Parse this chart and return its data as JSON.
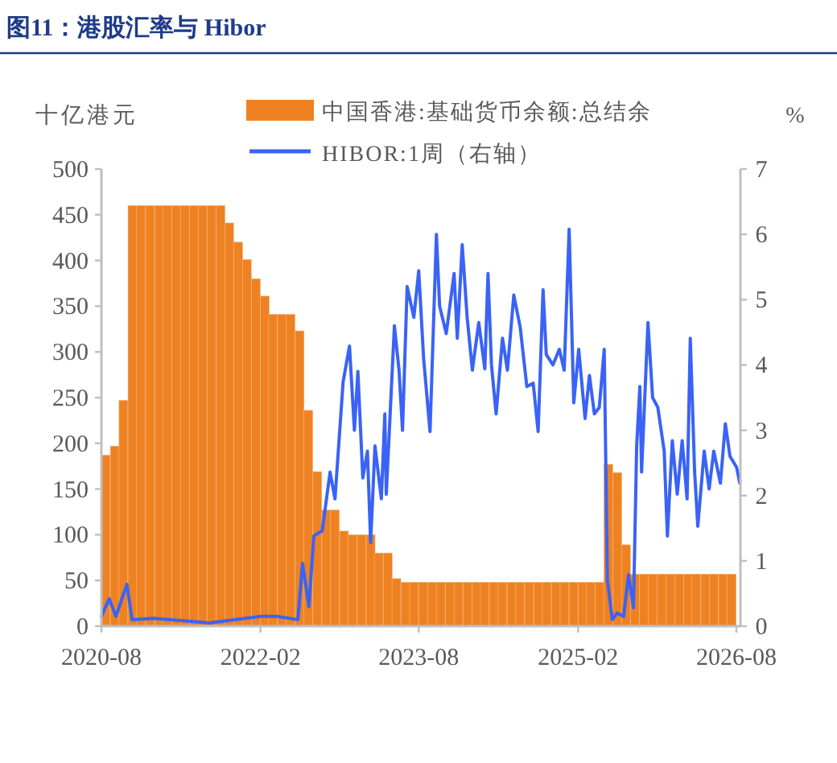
{
  "chart_data": {
    "type": "bar",
    "title": "图11：港股汇率与 Hibor",
    "ylabel": "十亿港元",
    "y2label": "%",
    "xlim": [
      "2020-08-01",
      "2026-08-15"
    ],
    "xticks": [
      "2020-08",
      "2022-02",
      "2023-08",
      "2025-02",
      "2026-08"
    ],
    "ylim": [
      0,
      500
    ],
    "yticks": [
      0,
      50,
      100,
      150,
      200,
      250,
      300,
      350,
      400,
      450,
      500
    ],
    "y2lim": [
      0,
      7
    ],
    "y2ticks": [
      0,
      1,
      2,
      3,
      4,
      5,
      6,
      7
    ],
    "grid": false,
    "legend": "top",
    "series": [
      {
        "name": "中国香港:基础货币余额:总结余",
        "color": "#ee8222",
        "x": [
          "2020-08-16",
          "2020-09-16",
          "2020-10-16",
          "2020-11-16",
          "2020-12-16",
          "2021-01-16",
          "2021-02-16",
          "2021-03-16",
          "2021-04-16",
          "2021-05-16",
          "2021-06-16",
          "2021-07-16",
          "2021-08-16",
          "2021-09-16",
          "2021-10-16",
          "2021-11-16",
          "2021-12-16",
          "2022-01-16",
          "2022-02-16",
          "2022-03-16",
          "2022-04-16",
          "2022-05-16",
          "2022-06-16",
          "2022-07-16",
          "2022-08-16",
          "2022-09-16",
          "2022-10-16",
          "2022-11-16",
          "2022-12-16",
          "2023-01-16",
          "2023-02-16",
          "2023-03-16",
          "2023-04-16",
          "2023-05-16",
          "2023-06-16",
          "2023-07-16",
          "2023-08-16",
          "2023-09-16",
          "2023-10-16",
          "2023-11-16",
          "2023-12-16",
          "2024-01-16",
          "2024-02-16",
          "2024-03-16",
          "2024-04-16",
          "2024-05-16",
          "2024-06-16",
          "2024-07-16",
          "2024-08-16",
          "2024-09-16",
          "2024-10-16",
          "2024-11-16",
          "2024-12-16",
          "2025-01-16",
          "2025-02-16",
          "2025-03-16",
          "2025-04-16",
          "2025-05-16",
          "2025-06-16",
          "2025-07-16",
          "2025-08-16",
          "2025-09-16",
          "2025-10-16",
          "2025-11-16",
          "2025-12-16",
          "2026-01-16",
          "2026-02-16",
          "2026-03-16",
          "2026-04-16",
          "2026-05-16",
          "2026-06-16",
          "2026-07-16"
        ],
        "values": [
          187,
          197,
          247,
          460,
          460,
          460,
          460,
          460,
          460,
          460,
          460,
          460,
          460,
          460,
          441,
          420,
          401,
          380,
          361,
          341,
          341,
          341,
          323,
          236,
          169,
          127,
          127,
          104,
          100,
          100,
          100,
          80,
          80,
          52,
          48,
          48,
          48,
          48,
          48,
          48,
          48,
          48,
          48,
          48,
          48,
          48,
          48,
          48,
          48,
          48,
          48,
          48,
          48,
          48,
          48,
          48,
          48,
          177,
          168,
          89,
          57,
          57,
          57,
          57,
          57,
          57,
          57,
          57,
          57,
          57,
          57,
          57
        ]
      },
      {
        "name": "HIBOR:1周（右轴）",
        "type": "line",
        "axis": "y2",
        "color": "#3a63f5",
        "x": [
          "2020-08-01",
          "2020-08-28",
          "2020-09-20",
          "2020-10-28",
          "2020-11-15",
          "2021-01-26",
          "2021-08-08",
          "2022-02-04",
          "2022-03-28",
          "2022-06-10",
          "2022-06-26",
          "2022-07-18",
          "2022-08-04",
          "2022-09-02",
          "2022-09-29",
          "2022-10-16",
          "2022-11-13",
          "2022-12-05",
          "2022-12-22",
          "2023-01-03",
          "2023-01-20",
          "2023-02-05",
          "2023-02-16",
          "2023-03-03",
          "2023-03-25",
          "2023-04-06",
          "2023-04-11",
          "2023-05-09",
          "2023-05-25",
          "2023-06-06",
          "2023-06-22",
          "2023-07-15",
          "2023-08-01",
          "2023-08-18",
          "2023-09-09",
          "2023-10-01",
          "2023-10-12",
          "2023-11-04",
          "2023-12-01",
          "2023-12-12",
          "2023-12-29",
          "2024-01-15",
          "2024-02-02",
          "2024-02-24",
          "2024-03-16",
          "2024-03-27",
          "2024-04-08",
          "2024-04-24",
          "2024-05-16",
          "2024-06-02",
          "2024-06-24",
          "2024-07-16",
          "2024-08-08",
          "2024-08-30",
          "2024-09-16",
          "2024-10-03",
          "2024-10-14",
          "2024-11-06",
          "2024-11-28",
          "2024-12-15",
          "2025-01-01",
          "2025-01-17",
          "2025-02-03",
          "2025-02-25",
          "2025-03-12",
          "2025-03-29",
          "2025-04-15",
          "2025-05-02",
          "2025-05-13",
          "2025-05-30",
          "2025-06-15",
          "2025-07-08",
          "2025-07-25",
          "2025-08-11",
          "2025-08-22",
          "2025-09-02",
          "2025-09-08",
          "2025-09-30",
          "2025-10-16",
          "2025-11-03",
          "2025-11-25",
          "2025-12-06",
          "2025-12-23",
          "2026-01-09",
          "2026-01-26",
          "2026-02-12",
          "2026-02-23",
          "2026-03-10",
          "2026-03-21",
          "2026-04-12",
          "2026-04-29",
          "2026-05-15",
          "2026-06-07",
          "2026-06-24",
          "2026-07-10",
          "2026-08-02",
          "2026-08-13"
        ],
        "values": [
          0.15,
          0.42,
          0.15,
          0.64,
          0.1,
          0.12,
          0.05,
          0.15,
          0.15,
          0.1,
          0.96,
          0.3,
          1.38,
          1.46,
          2.36,
          1.95,
          3.74,
          4.29,
          3.0,
          3.9,
          2.27,
          2.68,
          1.28,
          2.76,
          1.95,
          3.25,
          2.02,
          4.6,
          3.92,
          3.0,
          5.2,
          4.73,
          5.44,
          4.09,
          2.98,
          6.0,
          4.9,
          4.48,
          5.4,
          4.41,
          5.84,
          4.73,
          3.92,
          4.65,
          3.94,
          5.4,
          4.0,
          3.25,
          4.41,
          3.92,
          5.07,
          4.58,
          3.67,
          3.72,
          2.98,
          5.15,
          4.16,
          4.0,
          4.24,
          3.92,
          6.08,
          3.42,
          4.24,
          3.18,
          3.84,
          3.25,
          3.35,
          4.24,
          0.71,
          0.1,
          0.2,
          0.15,
          0.79,
          0.28,
          2.76,
          3.67,
          2.36,
          4.65,
          3.5,
          3.35,
          2.68,
          1.38,
          2.84,
          2.02,
          2.84,
          1.95,
          4.41,
          2.36,
          1.53,
          2.68,
          2.1,
          2.68,
          2.19,
          3.1,
          2.6,
          2.43,
          2.19
        ]
      }
    ]
  }
}
